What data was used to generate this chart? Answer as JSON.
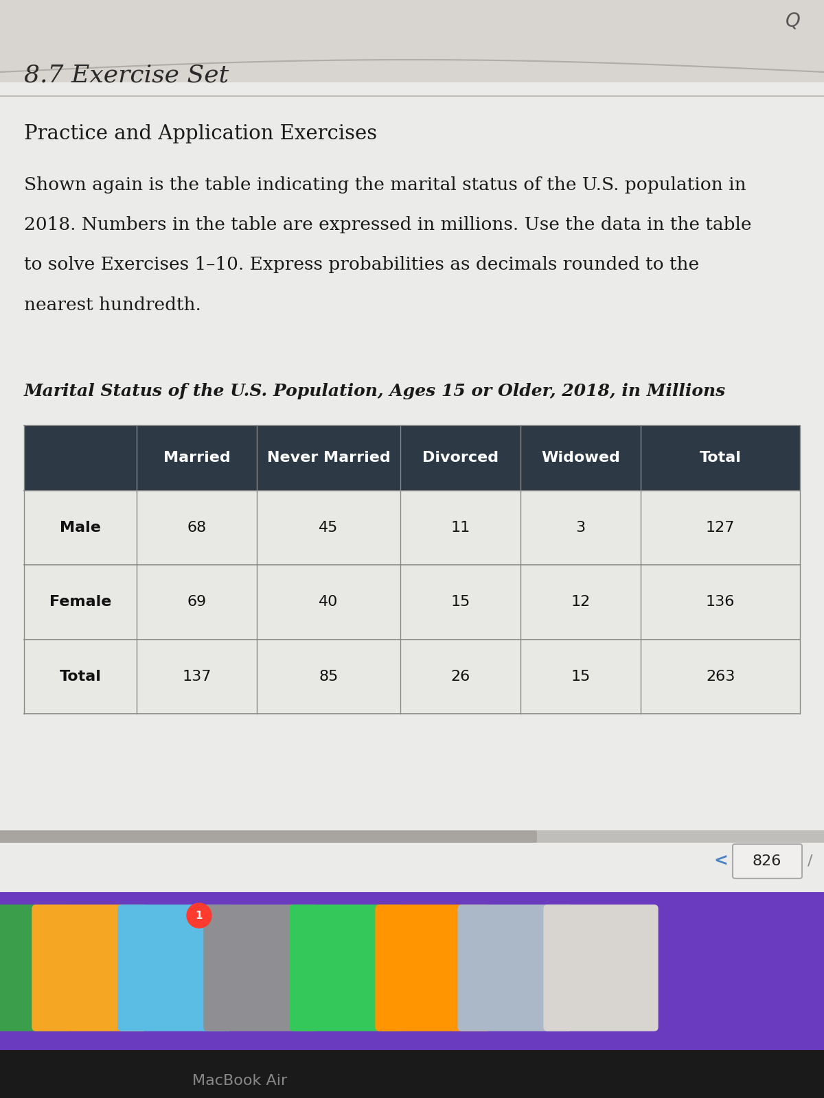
{
  "section_title": "8.7 Exercise Set",
  "subtitle": "Practice and Application Exercises",
  "para_lines": [
    "Shown again is the table indicating the marital status of the U.S. population in",
    "2018. Numbers in the table are expressed in millions. Use the data in the table",
    "to solve Exercises 1–10. Express probabilities as decimals rounded to the",
    "nearest hundredth."
  ],
  "table_title": "Marital Status of the U.S. Population, Ages 15 or Older, 2018, in Millions",
  "col_headers": [
    "Married",
    "Never Married",
    "Divorced",
    "Widowed",
    "Total"
  ],
  "row_headers": [
    "Male",
    "Female",
    "Total"
  ],
  "data": [
    [
      68,
      45,
      11,
      3,
      127
    ],
    [
      69,
      40,
      15,
      12,
      136
    ],
    [
      137,
      85,
      26,
      15,
      263
    ]
  ],
  "header_bg_color": "#2d3a45",
  "header_text_color": "#ffffff",
  "row_header_text_color": "#111111",
  "data_text_color": "#111111",
  "table_bg_color": "#e8e8e5",
  "table_line_color": "#999999",
  "page_bg_color": "#d8d5d0",
  "content_bg_color": "#ebebea",
  "section_title_color": "#2a2a2a",
  "body_text_color": "#1a1a1a",
  "page_number": "826",
  "dock_bg_color": "#6b3bbf",
  "macbook_bar_color": "#1a1a1a",
  "scroll_bar_color": "#c0bebb",
  "scroll_handle_color": "#a8a5a0"
}
